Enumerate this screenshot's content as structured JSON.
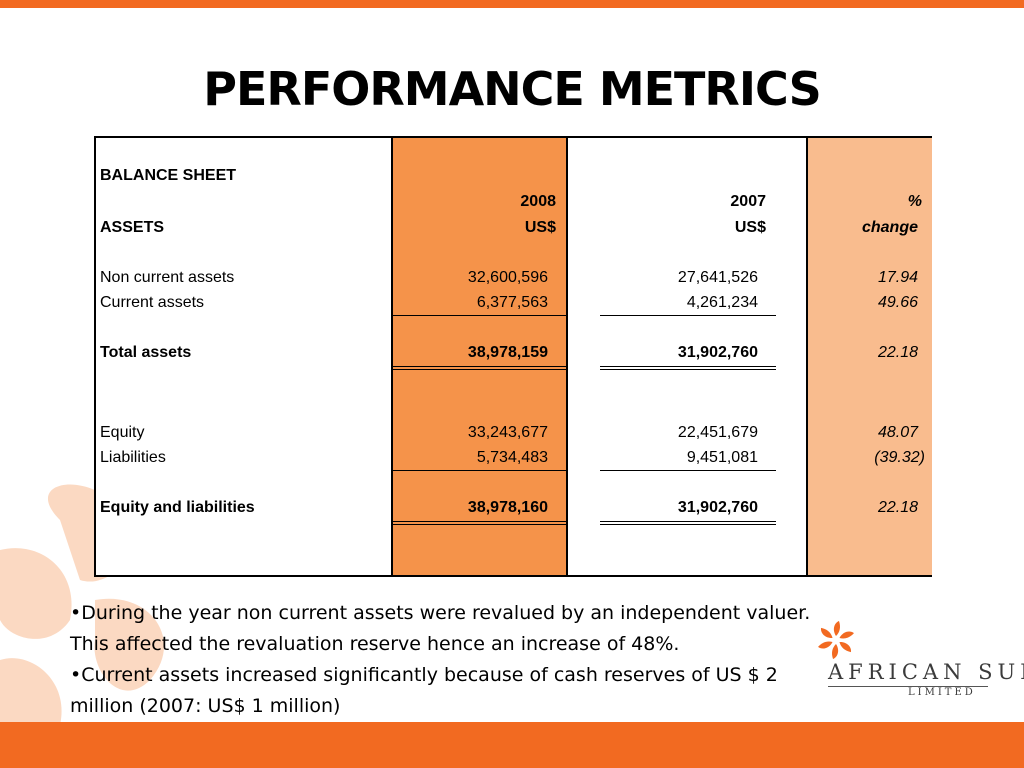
{
  "slide": {
    "title": "PERFORMANCE METRICS"
  },
  "table": {
    "section_title": "BALANCE SHEET",
    "assets_heading": "ASSETS",
    "col_2008_year": "2008",
    "col_2008_unit": "US$",
    "col_2007_year": "2007",
    "col_2007_unit": "US$",
    "col_pct_symbol": "%",
    "col_pct_label": "change",
    "rows": [
      {
        "label": "Non current assets",
        "v2008": "32,600,596",
        "v2007": "27,641,526",
        "pct": "17.94"
      },
      {
        "label": "Current assets",
        "v2008": "6,377,563",
        "v2007": "4,261,234",
        "pct": "49.66"
      },
      {
        "label": "Total assets",
        "v2008": "38,978,159",
        "v2007": "31,902,760",
        "pct": "22.18"
      },
      {
        "label": "Equity",
        "v2008": "33,243,677",
        "v2007": "22,451,679",
        "pct": "48.07"
      },
      {
        "label": "Liabilities",
        "v2008": "5,734,483",
        "v2007": "9,451,081",
        "pct": "(39.32)"
      },
      {
        "label": "Equity and liabilities",
        "v2008": "38,978,160",
        "v2007": "31,902,760",
        "pct": "22.18"
      }
    ]
  },
  "notes": {
    "line1": "•During the year non current assets were revalued by an independent valuer.",
    "line2": "This affected the revaluation reserve hence an increase of 48%.",
    "line3": "•Current assets increased significantly because of cash reserves of US $ 2",
    "line4": "million (2007: US$ 1 million)"
  },
  "logo": {
    "name": "AFRICAN SUN",
    "sub": "LIMITED",
    "icon": "sun-flower-icon"
  },
  "colors": {
    "accent": "#f26a21",
    "col_2008_fill": "#f5934a",
    "col_pct_fill": "#f9bc8e",
    "decor": "#fbd9c2"
  }
}
